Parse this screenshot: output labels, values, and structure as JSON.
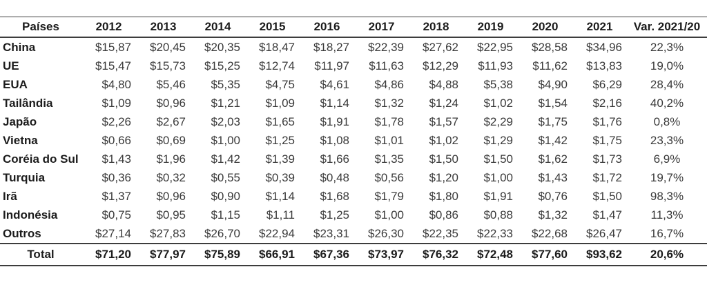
{
  "colors": {
    "background": "#ffffff",
    "rule_lines": "#3d3d3d",
    "bold_text": "#1c1c1c",
    "value_text": "#3a3a3a"
  },
  "chart_data": {
    "type": "table",
    "columns": [
      "Países",
      "2012",
      "2013",
      "2014",
      "2015",
      "2016",
      "2017",
      "2018",
      "2019",
      "2020",
      "2021",
      "Var. 2021/20"
    ],
    "rows": [
      {
        "label": "China",
        "values": [
          "$15,87",
          "$20,45",
          "$20,35",
          "$18,47",
          "$18,27",
          "$22,39",
          "$27,62",
          "$22,95",
          "$28,58",
          "$34,96"
        ],
        "var": "22,3%"
      },
      {
        "label": "UE",
        "values": [
          "$15,47",
          "$15,73",
          "$15,25",
          "$12,74",
          "$11,97",
          "$11,63",
          "$12,29",
          "$11,93",
          "$11,62",
          "$13,83"
        ],
        "var": "19,0%"
      },
      {
        "label": "EUA",
        "values": [
          "$4,80",
          "$5,46",
          "$5,35",
          "$4,75",
          "$4,61",
          "$4,86",
          "$4,88",
          "$5,38",
          "$4,90",
          "$6,29"
        ],
        "var": "28,4%"
      },
      {
        "label": "Tailândia",
        "values": [
          "$1,09",
          "$0,96",
          "$1,21",
          "$1,09",
          "$1,14",
          "$1,32",
          "$1,24",
          "$1,02",
          "$1,54",
          "$2,16"
        ],
        "var": "40,2%"
      },
      {
        "label": "Japão",
        "values": [
          "$2,26",
          "$2,67",
          "$2,03",
          "$1,65",
          "$1,91",
          "$1,78",
          "$1,57",
          "$2,29",
          "$1,75",
          "$1,76"
        ],
        "var": "0,8%"
      },
      {
        "label": "Vietna",
        "values": [
          "$0,66",
          "$0,69",
          "$1,00",
          "$1,25",
          "$1,08",
          "$1,01",
          "$1,02",
          "$1,29",
          "$1,42",
          "$1,75"
        ],
        "var": "23,3%"
      },
      {
        "label": "Coréia do Sul",
        "values": [
          "$1,43",
          "$1,96",
          "$1,42",
          "$1,39",
          "$1,66",
          "$1,35",
          "$1,50",
          "$1,50",
          "$1,62",
          "$1,73"
        ],
        "var": "6,9%"
      },
      {
        "label": "Turquia",
        "values": [
          "$0,36",
          "$0,32",
          "$0,55",
          "$0,39",
          "$0,48",
          "$0,56",
          "$1,20",
          "$1,00",
          "$1,43",
          "$1,72"
        ],
        "var": "19,7%"
      },
      {
        "label": "Irã",
        "values": [
          "$1,37",
          "$0,96",
          "$0,90",
          "$1,14",
          "$1,68",
          "$1,79",
          "$1,80",
          "$1,91",
          "$0,76",
          "$1,50"
        ],
        "var": "98,3%"
      },
      {
        "label": "Indonésia",
        "values": [
          "$0,75",
          "$0,95",
          "$1,15",
          "$1,11",
          "$1,25",
          "$1,00",
          "$0,86",
          "$0,88",
          "$1,32",
          "$1,47"
        ],
        "var": "11,3%"
      },
      {
        "label": "Outros",
        "values": [
          "$27,14",
          "$27,83",
          "$26,70",
          "$22,94",
          "$23,31",
          "$26,30",
          "$22,35",
          "$22,33",
          "$22,68",
          "$26,47"
        ],
        "var": "16,7%"
      }
    ],
    "total_row": {
      "label": "Total",
      "values": [
        "$71,20",
        "$77,97",
        "$75,89",
        "$66,91",
        "$67,36",
        "$73,97",
        "$76,32",
        "$72,48",
        "$77,60",
        "$93,62"
      ],
      "var": "20,6%"
    }
  }
}
